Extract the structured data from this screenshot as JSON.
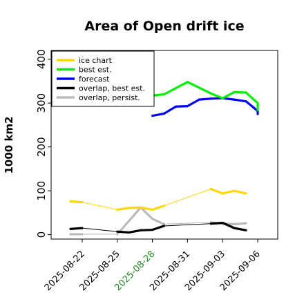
{
  "chart_data": {
    "type": "line",
    "title": "Area of Open drift ice",
    "ylabel": "1000 km2",
    "xlabel": "",
    "ylim": [
      -10,
      420
    ],
    "xlim": [
      "2025-08-21",
      "2025-09-06"
    ],
    "yticks": [
      0,
      100,
      200,
      300,
      400
    ],
    "xticks": [
      {
        "label": "2025-08-22",
        "date": "2025-08-22",
        "color": "#000000"
      },
      {
        "label": "2025-08-25",
        "date": "2025-08-25",
        "color": "#000000"
      },
      {
        "label": "2025-08-28",
        "date": "2025-08-28",
        "color": "#228b22"
      },
      {
        "label": "2025-08-31",
        "date": "2025-08-31",
        "color": "#000000"
      },
      {
        "label": "2025-09-03",
        "date": "2025-09-03",
        "color": "#000000"
      },
      {
        "label": "2025-09-06",
        "date": "2025-09-06",
        "color": "#000000"
      }
    ],
    "legend_position": "top-left",
    "series": [
      {
        "name": "ice chart",
        "color": "#ffd700",
        "points": [
          [
            "2025-08-21",
            76
          ],
          [
            "2025-08-22",
            74
          ],
          [
            "2025-08-25",
            57
          ],
          [
            "2025-08-26",
            61
          ],
          [
            "2025-08-27",
            62
          ],
          [
            "2025-08-28",
            57
          ],
          [
            "2025-08-29",
            66
          ],
          [
            "2025-09-02",
            104
          ],
          [
            "2025-09-03",
            94
          ],
          [
            "2025-09-04",
            100
          ],
          [
            "2025-09-05",
            94
          ]
        ]
      },
      {
        "name": "best est.",
        "color": "#00ee00",
        "points": [
          [
            "2025-08-28",
            317
          ],
          [
            "2025-08-29",
            320
          ],
          [
            "2025-08-31",
            348
          ],
          [
            "2025-09-02",
            322
          ],
          [
            "2025-09-03",
            311
          ],
          [
            "2025-09-04",
            325
          ],
          [
            "2025-09-05",
            324
          ],
          [
            "2025-09-06",
            300
          ],
          [
            "2025-09-06",
            284
          ]
        ]
      },
      {
        "name": "forecast",
        "color": "#0000ff",
        "points": [
          [
            "2025-08-28",
            271
          ],
          [
            "2025-08-29",
            276
          ],
          [
            "2025-08-30",
            292
          ],
          [
            "2025-08-31",
            293
          ],
          [
            "2025-09-01",
            308
          ],
          [
            "2025-09-02",
            310
          ],
          [
            "2025-09-03",
            311
          ],
          [
            "2025-09-04",
            308
          ],
          [
            "2025-09-05",
            304
          ],
          [
            "2025-09-06",
            282
          ],
          [
            "2025-09-06",
            275
          ]
        ]
      },
      {
        "name": "overlap, best est.",
        "color": "#000000",
        "points": [
          [
            "2025-08-21",
            13
          ],
          [
            "2025-08-22",
            15
          ],
          [
            "2025-08-25",
            7
          ],
          [
            "2025-08-26",
            5
          ],
          [
            "2025-08-27",
            10
          ],
          [
            "2025-08-28",
            11
          ],
          [
            "2025-08-29",
            20
          ],
          [
            "2025-09-02",
            25
          ],
          [
            "2025-09-03",
            27
          ],
          [
            "2025-09-04",
            15
          ],
          [
            "2025-09-05",
            10
          ]
        ]
      },
      {
        "name": "overlap, persist.",
        "color": "#bbbbbb",
        "points": [
          [
            "2025-08-21",
            1
          ],
          [
            "2025-08-22",
            1
          ],
          [
            "2025-08-25",
            1
          ],
          [
            "2025-08-27",
            62
          ],
          [
            "2025-08-28",
            36
          ],
          [
            "2025-08-29",
            24
          ],
          [
            "2025-09-02",
            28
          ],
          [
            "2025-09-03",
            25
          ],
          [
            "2025-09-04",
            24
          ],
          [
            "2025-09-05",
            26
          ]
        ]
      }
    ]
  }
}
